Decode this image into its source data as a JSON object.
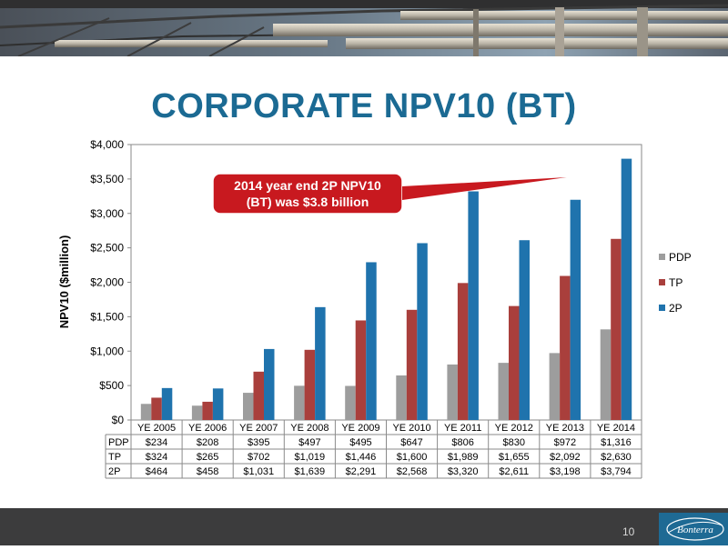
{
  "slide": {
    "title": "CORPORATE NPV10 (BT)",
    "page_number": "10",
    "logo_text": "Bonterra"
  },
  "colors": {
    "title": "#1b6a93",
    "PDP": "#9d9d9d",
    "TP": "#a93f3c",
    "2P": "#1f73ad",
    "callout": "#c8191f",
    "footer": "#3c3c3d",
    "logo": "#1e6a94"
  },
  "callout": {
    "line1": "2014 year end 2P NPV10",
    "line2": "(BT) was $3.8 billion"
  },
  "chart_data": {
    "type": "bar",
    "ylabel": "NPV10 ($million)",
    "xlabel": "",
    "ylim": [
      0,
      4000
    ],
    "yticks": [
      "$0",
      "$500",
      "$1,000",
      "$1,500",
      "$2,000",
      "$2,500",
      "$3,000",
      "$3,500",
      "$4,000"
    ],
    "categories": [
      "YE 2005",
      "YE 2006",
      "YE 2007",
      "YE 2008",
      "YE 2009",
      "YE 2010",
      "YE 2011",
      "YE 2012",
      "YE 2013",
      "YE 2014"
    ],
    "series": [
      {
        "name": "PDP",
        "values": [
          234,
          208,
          395,
          497,
          495,
          647,
          806,
          830,
          972,
          1316
        ],
        "labels": [
          "$234",
          "$208",
          "$395",
          "$497",
          "$495",
          "$647",
          "$806",
          "$830",
          "$972",
          "$1,316"
        ]
      },
      {
        "name": "TP",
        "values": [
          324,
          265,
          702,
          1019,
          1446,
          1600,
          1989,
          1655,
          2092,
          2630
        ],
        "labels": [
          "$324",
          "$265",
          "$702",
          "$1,019",
          "$1,446",
          "$1,600",
          "$1,989",
          "$1,655",
          "$2,092",
          "$2,630"
        ]
      },
      {
        "name": "2P",
        "values": [
          464,
          458,
          1031,
          1639,
          2291,
          2568,
          3320,
          2611,
          3198,
          3794
        ],
        "labels": [
          "$464",
          "$458",
          "$1,031",
          "$1,639",
          "$2,291",
          "$2,568",
          "$3,320",
          "$2,611",
          "$3,198",
          "$3,794"
        ]
      }
    ],
    "legend_position": "right",
    "grid": false,
    "data_table": true
  }
}
